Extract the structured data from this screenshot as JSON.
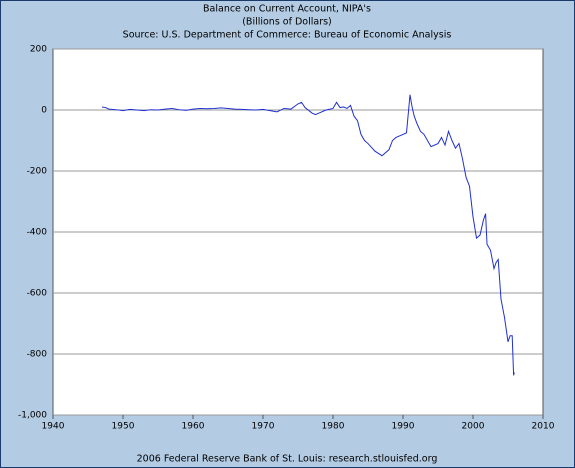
{
  "chart_data": {
    "type": "line",
    "title": "Balance on Current Account, NIPA's",
    "subtitle": "(Billions of Dollars)",
    "source": "Source: U.S. Department of Commerce: Bureau of Economic Analysis",
    "footer": "2006 Federal Reserve Bank of St. Louis: research.stlouisfed.org",
    "color": "#1f2fd0",
    "grid": true,
    "x": [
      1947,
      1947.5,
      1948,
      1949,
      1950,
      1951,
      1952,
      1953,
      1954,
      1955,
      1956,
      1957,
      1958,
      1959,
      1960,
      1961,
      1962,
      1963,
      1964,
      1965,
      1966,
      1967,
      1968,
      1969,
      1970,
      1971,
      1972,
      1973,
      1974,
      1975,
      1975.5,
      1976,
      1977,
      1977.5,
      1978,
      1979,
      1980,
      1980.5,
      1981,
      1981.5,
      1982,
      1982.5,
      1983,
      1983.5,
      1984,
      1984.5,
      1985,
      1986,
      1987,
      1988,
      1988.5,
      1989,
      1990,
      1990.5,
      1991,
      1991.3,
      1991.6,
      1992,
      1992.5,
      1993,
      1994,
      1995,
      1995.5,
      1996,
      1996.5,
      1997,
      1997.5,
      1998,
      1998.5,
      1999,
      1999.5,
      2000,
      2000.5,
      2001,
      2001.5,
      2001.8,
      2002,
      2002.5,
      2003,
      2003.3,
      2003.6,
      2004,
      2004.5,
      2005,
      2005.3,
      2005.6,
      2005.8,
      2005.9
    ],
    "values": [
      10,
      8,
      3,
      1,
      -2,
      2,
      0,
      -2,
      1,
      0,
      3,
      5,
      1,
      -1,
      3,
      5,
      4,
      5,
      7,
      5,
      3,
      2,
      1,
      0,
      2,
      -2,
      -6,
      5,
      3,
      20,
      25,
      8,
      -10,
      -15,
      -10,
      0,
      5,
      25,
      8,
      10,
      5,
      15,
      -20,
      -35,
      -80,
      -100,
      -110,
      -135,
      -150,
      -130,
      -100,
      -90,
      -80,
      -75,
      50,
      10,
      -20,
      -45,
      -70,
      -80,
      -120,
      -110,
      -90,
      -115,
      -70,
      -100,
      -125,
      -110,
      -160,
      -220,
      -250,
      -350,
      -420,
      -410,
      -360,
      -340,
      -440,
      -460,
      -520,
      -500,
      -490,
      -620,
      -680,
      -760,
      -740,
      -740,
      -870,
      -860
    ],
    "xlim": [
      1940,
      2010
    ],
    "xticks": [
      1940,
      1950,
      1960,
      1970,
      1980,
      1990,
      2000,
      2010
    ],
    "ylim": [
      -1000,
      200
    ],
    "yticks": [
      {
        "value": -1000,
        "label": "-1,000"
      },
      -800,
      -600,
      -400,
      -200,
      0,
      200
    ]
  }
}
